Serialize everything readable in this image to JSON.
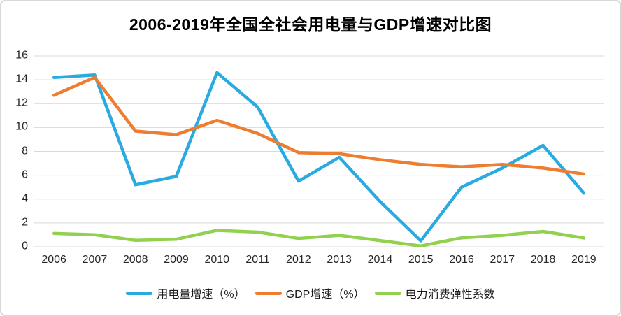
{
  "chart_data": {
    "type": "line",
    "title": "2006-2019年全国全社会用电量与GDP增速对比图",
    "categories": [
      "2006",
      "2007",
      "2008",
      "2009",
      "2010",
      "2011",
      "2012",
      "2013",
      "2014",
      "2015",
      "2016",
      "2017",
      "2018",
      "2019"
    ],
    "series": [
      {
        "name": "用电量增速（%）",
        "color": "#29ABE2",
        "values": [
          14.2,
          14.4,
          5.2,
          5.9,
          14.6,
          11.7,
          5.5,
          7.5,
          3.8,
          0.5,
          5.0,
          6.6,
          8.5,
          4.5
        ]
      },
      {
        "name": "GDP增速（%）",
        "color": "#ED7D31",
        "values": [
          12.7,
          14.2,
          9.7,
          9.4,
          10.6,
          9.5,
          7.9,
          7.8,
          7.3,
          6.9,
          6.7,
          6.9,
          6.6,
          6.1
        ]
      },
      {
        "name": "电力消费弹性系数",
        "color": "#92D050",
        "values": [
          1.12,
          1.01,
          0.54,
          0.63,
          1.38,
          1.23,
          0.7,
          0.96,
          0.52,
          0.07,
          0.75,
          0.96,
          1.29,
          0.74
        ]
      }
    ],
    "ylim": [
      0,
      16
    ],
    "ytick_step": 2,
    "ytick_labels": [
      "0",
      "2",
      "4",
      "6",
      "8",
      "10",
      "12",
      "14",
      "16"
    ],
    "grid": "horizontal",
    "gridline_color": "#D9D9D9",
    "axis_text_color": "#262626",
    "title_color": "#000000",
    "legend_position": "bottom",
    "xlabel": "",
    "ylabel": ""
  }
}
